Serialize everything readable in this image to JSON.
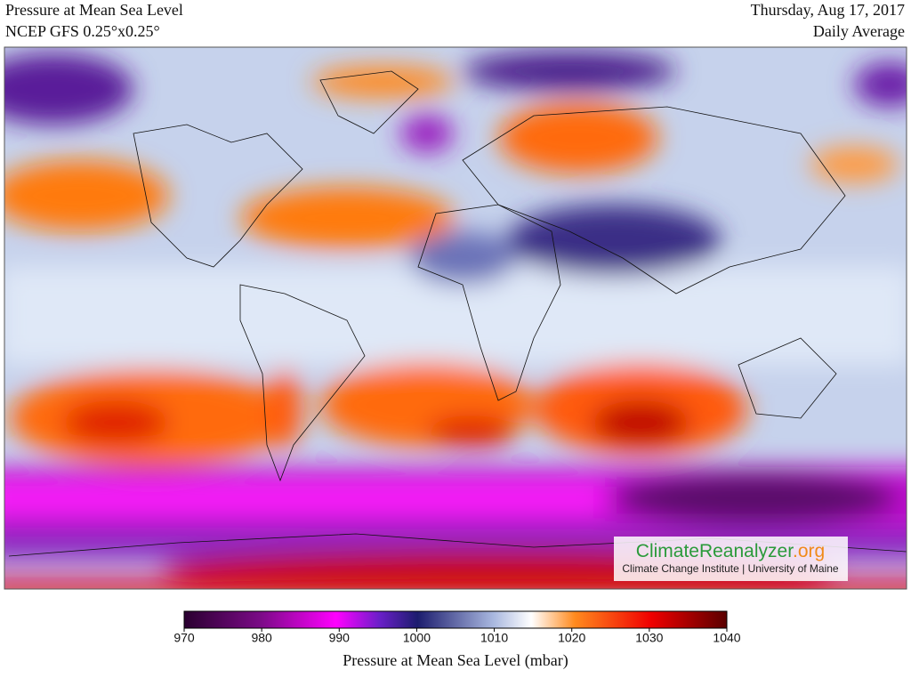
{
  "header": {
    "title": "Pressure at Mean Sea Level",
    "subtitle": "NCEP GFS 0.25°x0.25°",
    "date": "Thursday, Aug 17, 2017",
    "period": "Daily Average"
  },
  "colorbar": {
    "range": [
      970,
      1040
    ],
    "ticks": [
      970,
      980,
      990,
      1000,
      1010,
      1020,
      1030,
      1040
    ],
    "label": "Pressure at Mean Sea Level (mbar)"
  },
  "logo": {
    "name": "ClimateReanalyzer",
    "suffix": ".org",
    "credit": "Climate Change Institute | University of Maine"
  }
}
